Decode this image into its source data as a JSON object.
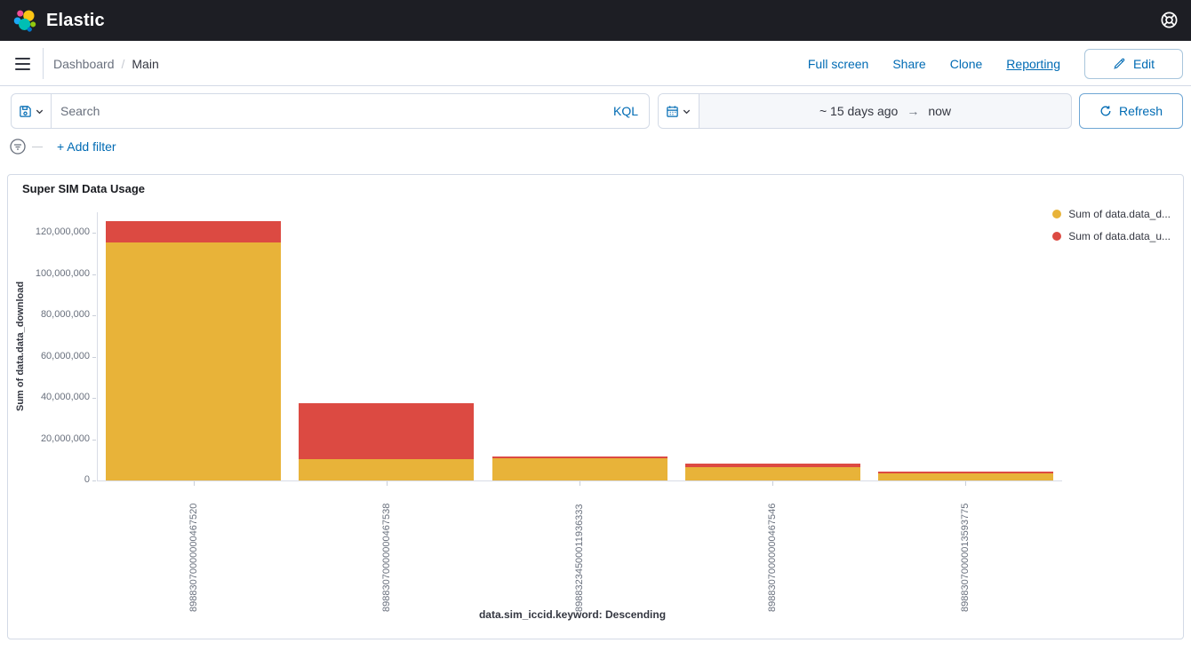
{
  "header": {
    "app_title": "Elastic"
  },
  "navbar": {
    "breadcrumb": {
      "section": "Dashboard",
      "separator": "/",
      "current": "Main"
    },
    "actions": [
      "Full screen",
      "Share",
      "Clone",
      "Reporting"
    ],
    "edit_label": "Edit"
  },
  "query_bar": {
    "search_placeholder": "Search",
    "query_language": "KQL",
    "date_range": {
      "start": "~ 15 days ago",
      "end": "now"
    },
    "refresh_label": "Refresh"
  },
  "filter_bar": {
    "add_filter_label": "+ Add filter"
  },
  "panel": {
    "title": "Super SIM Data Usage"
  },
  "colors": {
    "accent_blue": "#006bb4",
    "header_bg": "#1d1e24",
    "border": "#d3dae6",
    "download_yellow": "#e8b339",
    "upload_red": "#dc4a42"
  },
  "chart_data": {
    "type": "bar",
    "stacked": true,
    "title": "Super SIM Data Usage",
    "xlabel": "data.sim_iccid.keyword: Descending",
    "ylabel": "Sum of data.data_download",
    "categories": [
      "89883070000000467520",
      "89883070000000467538",
      "89883234500011936333",
      "89883070000000467546",
      "89883070000013593775"
    ],
    "series": [
      {
        "name": "Sum of data.data_download",
        "legend_label": "Sum of data.data_d...",
        "color": "#e8b339",
        "values": [
          115500000,
          10400000,
          10800000,
          6300000,
          3400000
        ]
      },
      {
        "name": "Sum of data.data_upload",
        "legend_label": "Sum of data.data_u...",
        "color": "#dc4a42",
        "values": [
          10500000,
          27300000,
          700000,
          1900000,
          700000
        ]
      }
    ],
    "ylim": [
      0,
      130000000
    ],
    "yticks": [
      0,
      20000000,
      40000000,
      60000000,
      80000000,
      100000000,
      120000000
    ],
    "legend_position": "top-right",
    "grid": false
  }
}
